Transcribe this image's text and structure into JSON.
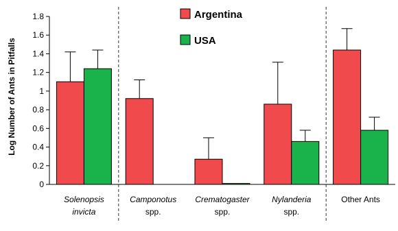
{
  "chart_data": {
    "type": "bar",
    "ylabel": "Log Number of Ants in Pitfalls",
    "ylim": [
      0,
      1.8
    ],
    "yticks": [
      "0",
      "0.2",
      "0.4",
      "0.6",
      "0.8",
      "1",
      "1.2",
      "1.4",
      "1.6",
      "1.8"
    ],
    "grid": false,
    "legend_placement": "top-center",
    "categories": [
      {
        "lines": [
          "Solenopsis",
          "invicta"
        ],
        "italic": [
          true,
          true
        ]
      },
      {
        "lines": [
          "Camponotus",
          "spp."
        ],
        "italic": [
          true,
          false
        ]
      },
      {
        "lines": [
          "Crematogaster",
          "spp."
        ],
        "italic": [
          true,
          false
        ]
      },
      {
        "lines": [
          "Nylanderia",
          "spp."
        ],
        "italic": [
          true,
          false
        ]
      },
      {
        "lines": [
          "Other Ants"
        ],
        "italic": [
          false
        ]
      }
    ],
    "series": [
      {
        "name": "Argentina",
        "color": "#f04a4d",
        "values": [
          1.1,
          0.92,
          0.27,
          0.86,
          1.44
        ],
        "error": [
          0.32,
          0.2,
          0.23,
          0.45,
          0.23
        ]
      },
      {
        "name": "USA",
        "color": "#1ab24a",
        "values": [
          1.24,
          0.0,
          0.01,
          0.46,
          0.58
        ],
        "error": [
          0.2,
          null,
          null,
          0.12,
          0.14
        ]
      }
    ],
    "dividers_after_category": [
      0,
      3
    ]
  }
}
